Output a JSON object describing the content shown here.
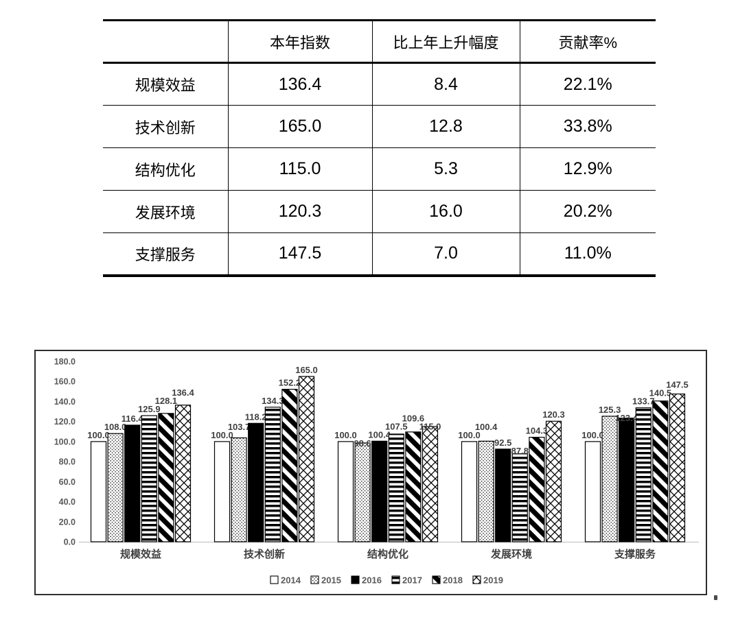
{
  "table": {
    "headers": [
      "",
      "本年指数",
      "比上年上升幅度",
      "贡献率%"
    ],
    "rows": [
      [
        "规模效益",
        "136.4",
        "8.4",
        "22.1%"
      ],
      [
        "技术创新",
        "165.0",
        "12.8",
        "33.8%"
      ],
      [
        "结构优化",
        "115.0",
        "5.3",
        "12.9%"
      ],
      [
        "发展环境",
        "120.3",
        "16.0",
        "20.2%"
      ],
      [
        "支撑服务",
        "147.5",
        "7.0",
        "11.0%"
      ]
    ]
  },
  "chart_data": {
    "type": "bar",
    "categories": [
      "规模效益",
      "技术创新",
      "结构优化",
      "发展环境",
      "支撑服务"
    ],
    "series": [
      {
        "name": "2014",
        "pattern": "white",
        "values": [
          100.0,
          100.0,
          100.0,
          100.0,
          100.0
        ]
      },
      {
        "name": "2015",
        "pattern": "dots",
        "values": [
          108.0,
          103.7,
          98.6,
          100.4,
          125.3
        ]
      },
      {
        "name": "2016",
        "pattern": "solid",
        "values": [
          116.4,
          118.2,
          100.4,
          92.5,
          123.4
        ]
      },
      {
        "name": "2017",
        "pattern": "hlines",
        "values": [
          125.9,
          134.3,
          107.5,
          87.8,
          133.7
        ]
      },
      {
        "name": "2018",
        "pattern": "diagonal",
        "values": [
          128.1,
          152.2,
          109.6,
          104.3,
          140.5
        ]
      },
      {
        "name": "2019",
        "pattern": "crosshatch",
        "values": [
          136.4,
          165.0,
          115.0,
          120.3,
          147.5
        ]
      }
    ],
    "ylim": [
      0,
      180
    ],
    "ytick_step": 20,
    "ytick_labels": [
      "0.0",
      "20.0",
      "40.0",
      "60.0",
      "80.0",
      "100.0",
      "120.0",
      "140.0",
      "160.0",
      "180.0"
    ],
    "grid": false,
    "legend_position": "bottom",
    "colors": {
      "bar_fill": "#000000",
      "bar_outline": "#000000",
      "axis_tick_label": "#595959",
      "value_label": "#404040",
      "category_label": "#404040",
      "legend_label": "#595959",
      "baseline": "#c6c6c6"
    }
  }
}
